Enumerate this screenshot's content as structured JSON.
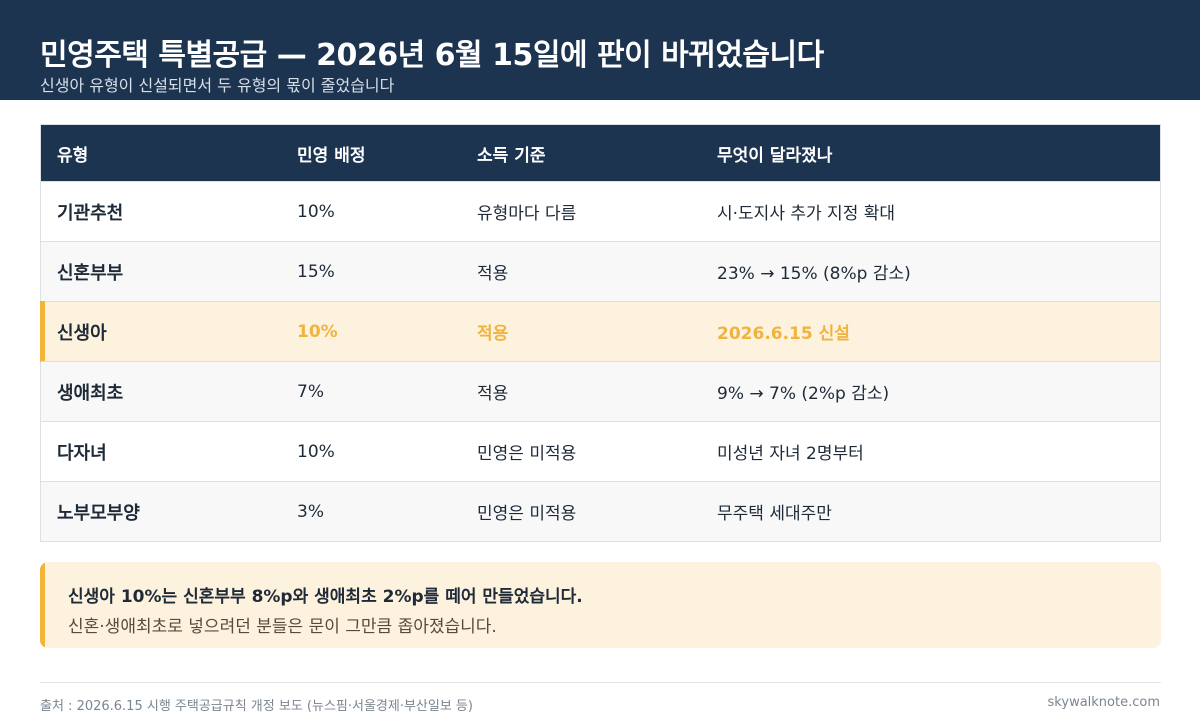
{
  "header": {
    "title": "민영주택 특별공급 — 2026년 6월 15일에 판이 바뀌었습니다",
    "subtitle": "신생아 유형이 신설되면서 두 유형의 몫이 줄었습니다"
  },
  "table": {
    "columns": [
      "유형",
      "민영 배정",
      "소득 기준",
      "무엇이 달라졌나"
    ],
    "rows": [
      {
        "type": "기관추천",
        "share": "10%",
        "income": "유형마다 다름",
        "change": "시·도지사 추가 지정 확대"
      },
      {
        "type": "신혼부부",
        "share": "15%",
        "income": "적용",
        "change": "23% → 15% (8%p 감소)"
      },
      {
        "type": "신생아",
        "share": "10%",
        "income": "적용",
        "change": "2026.6.15 신설"
      },
      {
        "type": "생애최초",
        "share": "7%",
        "income": "적용",
        "change": "9% → 7% (2%p 감소)"
      },
      {
        "type": "다자녀",
        "share": "10%",
        "income": "민영은 미적용",
        "change": "미성년 자녀 2명부터"
      },
      {
        "type": "노부모부양",
        "share": "3%",
        "income": "민영은 미적용",
        "change": "무주택 세대주만"
      }
    ]
  },
  "note": {
    "line1": "신생아 10%는 신혼부부 8%p와 생애최초 2%p를 떼어 만들었습니다.",
    "line2": "신혼·생애최초로 넣으려던 분들은 문이 그만큼 좁아졌습니다."
  },
  "footer": {
    "source": "출처 : 2026.6.15 시행 주택공급규칙 개정 보도 (뉴스핌·서울경제·부산일보 등)",
    "site": "skywalknote.com"
  },
  "colors": {
    "navy": "#1c3450",
    "accent": "#f2b53a",
    "highlight_bg": "#fdf2de"
  }
}
